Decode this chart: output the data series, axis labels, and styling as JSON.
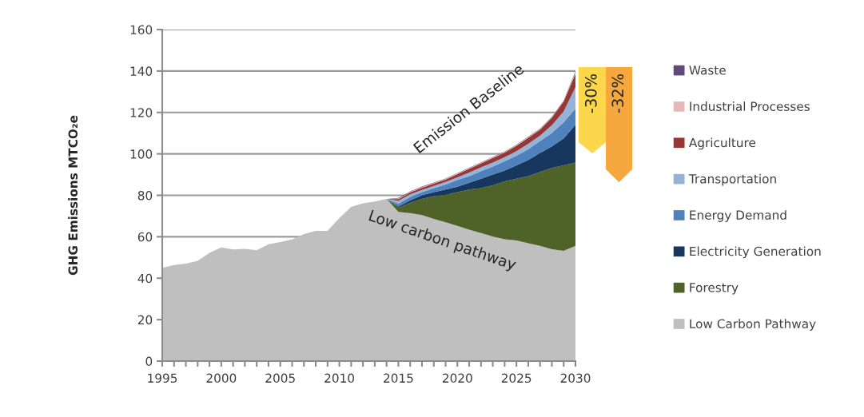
{
  "chart_data": {
    "type": "area",
    "stacked": true,
    "ylabel": "GHG Emissions MTCO₂e",
    "x": [
      1995,
      1996,
      1997,
      1998,
      1999,
      2000,
      2001,
      2002,
      2003,
      2004,
      2005,
      2006,
      2007,
      2008,
      2009,
      2010,
      2011,
      2012,
      2013,
      2014,
      2015,
      2016,
      2017,
      2018,
      2019,
      2020,
      2021,
      2022,
      2023,
      2024,
      2025,
      2026,
      2027,
      2028,
      2029,
      2030
    ],
    "series": [
      {
        "name": "Low Carbon Pathway",
        "color": "#bfbfbf",
        "values": [
          45,
          46.4,
          47,
          48.4,
          52.2,
          54.8,
          53.9,
          54.2,
          53.5,
          56.4,
          57.4,
          58.7,
          61.3,
          62.8,
          62.8,
          69,
          74.4,
          76.1,
          77,
          78.3,
          72,
          71.4,
          70.5,
          68.6,
          67,
          65.3,
          63.4,
          61.8,
          60.1,
          58.8,
          58.2,
          56.9,
          55.6,
          54,
          53.2,
          55.6
        ]
      },
      {
        "name": "Forestry",
        "color": "#4f6228",
        "values": [
          null,
          null,
          null,
          null,
          null,
          null,
          null,
          null,
          null,
          null,
          null,
          null,
          null,
          null,
          null,
          null,
          null,
          null,
          null,
          0,
          2.0,
          5.0,
          7.8,
          11.0,
          13.2,
          16.2,
          19.4,
          21.7,
          24.7,
          27.9,
          29.8,
          32.4,
          35.7,
          39.2,
          41.3,
          40.2
        ]
      },
      {
        "name": "Electricity Generation",
        "color": "#17375e",
        "values": [
          null,
          null,
          null,
          null,
          null,
          null,
          null,
          null,
          null,
          null,
          null,
          null,
          null,
          null,
          null,
          null,
          null,
          null,
          null,
          0,
          0.6,
          1.2,
          1.7,
          1.9,
          2.6,
          2.6,
          3.3,
          4.5,
          5.2,
          5.3,
          6.5,
          7.8,
          9.1,
          10.4,
          13.0,
          18.2
        ]
      },
      {
        "name": "Energy Demand",
        "color": "#4f81bd",
        "values": [
          null,
          null,
          null,
          null,
          null,
          null,
          null,
          null,
          null,
          null,
          null,
          null,
          null,
          null,
          null,
          null,
          null,
          null,
          null,
          0,
          1.4,
          1.6,
          1.5,
          2.0,
          2.4,
          3.3,
          3.2,
          3.7,
          3.9,
          4.5,
          4.6,
          5.2,
          5.8,
          6.5,
          7.8,
          7.8
        ]
      },
      {
        "name": "Transportation",
        "color": "#95b3d7",
        "values": [
          null,
          null,
          null,
          null,
          null,
          null,
          null,
          null,
          null,
          null,
          null,
          null,
          null,
          null,
          null,
          null,
          null,
          null,
          null,
          0,
          1.3,
          1.3,
          1.1,
          1.0,
          1.3,
          1.3,
          1.7,
          1.8,
          1.9,
          1.9,
          2.2,
          2.6,
          2.6,
          3.7,
          5.2,
          10.4
        ]
      },
      {
        "name": "Agriculture",
        "color": "#953735",
        "values": [
          null,
          null,
          null,
          null,
          null,
          null,
          null,
          null,
          null,
          null,
          null,
          null,
          null,
          null,
          null,
          null,
          null,
          null,
          null,
          0,
          0.9,
          0.9,
          1.1,
          1.2,
          1.1,
          1.5,
          1.8,
          1.9,
          2.2,
          2.2,
          2.6,
          2.9,
          2.9,
          3.7,
          4.8,
          6.5
        ]
      },
      {
        "name": "Industrial Processes",
        "color": "#e6b9b8",
        "values": [
          null,
          null,
          null,
          null,
          null,
          null,
          null,
          null,
          null,
          null,
          null,
          null,
          null,
          null,
          null,
          null,
          null,
          null,
          null,
          0,
          0.3,
          0.3,
          0.3,
          0.3,
          0.3,
          0.3,
          0.3,
          0.3,
          0.3,
          0.3,
          0.3,
          0.3,
          0.3,
          0.3,
          0.3,
          0.8
        ]
      },
      {
        "name": "Waste",
        "color": "#604a7b",
        "values": [
          null,
          null,
          null,
          null,
          null,
          null,
          null,
          null,
          null,
          null,
          null,
          null,
          null,
          null,
          null,
          null,
          null,
          null,
          null,
          0,
          0.2,
          0.2,
          0.2,
          0.2,
          0.2,
          0.2,
          0.2,
          0.2,
          0.2,
          0.2,
          0.2,
          0.2,
          0.2,
          0.2,
          0.2,
          0.5
        ]
      }
    ],
    "xlim": [
      1995,
      2030
    ],
    "xticks": [
      1995,
      {
        "value": 1996,
        "label": null
      },
      {
        "value": 1997,
        "label": null
      },
      {
        "value": 1998,
        "label": null
      },
      {
        "value": 1999,
        "label": null
      },
      2000,
      {
        "value": 2001,
        "label": null
      },
      {
        "value": 2002,
        "label": null
      },
      {
        "value": 2003,
        "label": null
      },
      {
        "value": 2004,
        "label": null
      },
      2005,
      {
        "value": 2006,
        "label": null
      },
      {
        "value": 2007,
        "label": null
      },
      {
        "value": 2008,
        "label": null
      },
      {
        "value": 2009,
        "label": null
      },
      2010,
      {
        "value": 2011,
        "label": null
      },
      {
        "value": 2012,
        "label": null
      },
      {
        "value": 2013,
        "label": null
      },
      {
        "value": 2014,
        "label": null
      },
      2015,
      {
        "value": 2016,
        "label": null
      },
      {
        "value": 2017,
        "label": null
      },
      {
        "value": 2018,
        "label": null
      },
      {
        "value": 2019,
        "label": null
      },
      2020,
      {
        "value": 2021,
        "label": null
      },
      {
        "value": 2022,
        "label": null
      },
      {
        "value": 2023,
        "label": null
      },
      {
        "value": 2024,
        "label": null
      },
      2025,
      {
        "value": 2026,
        "label": null
      },
      {
        "value": 2027,
        "label": null
      },
      {
        "value": 2028,
        "label": null
      },
      {
        "value": 2029,
        "label": null
      },
      2030
    ],
    "ylim": [
      0,
      160
    ],
    "yticks": [
      0,
      20,
      40,
      60,
      80,
      100,
      120,
      140,
      160
    ],
    "grid": "y",
    "legend": "right",
    "annotations": [
      "Emission Baseline",
      "Low carbon pathway",
      "-30%",
      "-32%"
    ]
  }
}
